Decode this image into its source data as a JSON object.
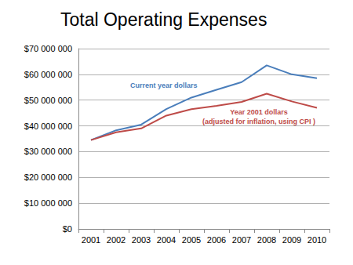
{
  "chart_data": {
    "type": "line",
    "title": "Total Operating Expenses",
    "categories": [
      "2001",
      "2002",
      "2003",
      "2004",
      "2005",
      "2006",
      "2007",
      "2008",
      "2009",
      "2010"
    ],
    "series": [
      {
        "name": "Current year dollars",
        "color": "#4a7ebb",
        "values": [
          34500000,
          38300000,
          40500000,
          46500000,
          51000000,
          54000000,
          57000000,
          63500000,
          60000000,
          58500000
        ]
      },
      {
        "name": "Year 2001 dollars\n(adjusted for inflation, using CPI )",
        "color": "#be4b48",
        "values": [
          34500000,
          37500000,
          39000000,
          44000000,
          46500000,
          47800000,
          49300000,
          52500000,
          49500000,
          47000000
        ]
      }
    ],
    "ylim": [
      0,
      70000000
    ],
    "yticks": [
      {
        "value": 0,
        "label": "$0"
      },
      {
        "value": 10000000,
        "label": "$10 000 000"
      },
      {
        "value": 20000000,
        "label": "$20 000 000"
      },
      {
        "value": 30000000,
        "label": "$30 000 000"
      },
      {
        "value": 40000000,
        "label": "$40 000 000"
      },
      {
        "value": 50000000,
        "label": "$50 000 000"
      },
      {
        "value": 60000000,
        "label": "$60 000 000"
      },
      {
        "value": 70000000,
        "label": "$70 000 000"
      }
    ],
    "grid": true
  }
}
